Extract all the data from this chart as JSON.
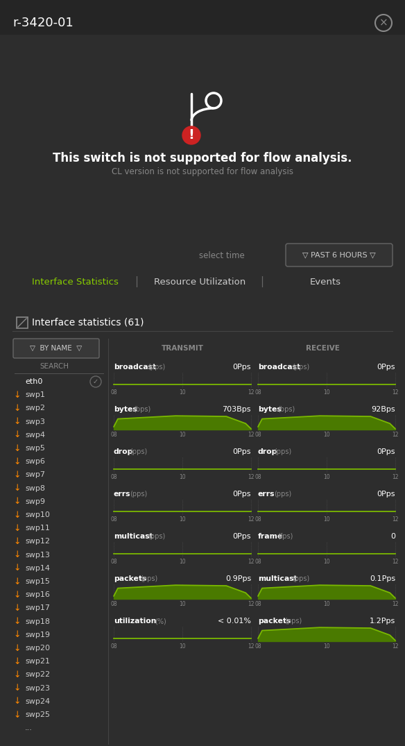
{
  "bg_color": "#2d2d2d",
  "title": "r-3420-01",
  "title_color": "#ffffff",
  "close_color": "#888888",
  "main_msg": "This switch is not supported for flow analysis.",
  "main_msg_color": "#ffffff",
  "sub_msg": "CL version is not supported for flow analysis",
  "sub_msg_color": "#888888",
  "select_time_label": "select time",
  "select_time_color": "#888888",
  "past_hours_btn": "▽ PAST 6 HOURS ▽",
  "past_hours_color": "#cccccc",
  "past_hours_border": "#666666",
  "tab_active": "Interface Statistics",
  "tab_active_color": "#88cc00",
  "tab_inactive": [
    "Resource Utilization",
    "Events"
  ],
  "tab_inactive_color": "#cccccc",
  "tab_sep_color": "#666666",
  "stats_icon_color": "#888888",
  "stats_title": "Interface statistics (61)",
  "stats_title_color": "#ffffff",
  "filter_btn": "▽  BY NAME  ▽",
  "filter_btn_color": "#cccccc",
  "filter_btn_border": "#666666",
  "search_label": "SEARCH",
  "search_color": "#888888",
  "search_line_color": "#555555",
  "iface_list": [
    "eth0",
    "swp1",
    "swp2",
    "swp3",
    "swp4",
    "swp5",
    "swp6",
    "swp7",
    "swp8",
    "swp9",
    "swp10",
    "swp11",
    "swp12",
    "swp13",
    "swp14",
    "swp15",
    "swp16",
    "swp17",
    "swp18",
    "swp19",
    "swp20",
    "swp21",
    "swp22",
    "swp23",
    "swp24",
    "swp25",
    "..."
  ],
  "iface_active": "eth0",
  "iface_active_color": "#ffffff",
  "iface_inactive_color": "#cccccc",
  "iface_down_color": "#ff8800",
  "iface_checkmark_color": "#888888",
  "divider_color": "#444444",
  "transmit_label": "TRANSMIT",
  "receive_label": "RECEIVE",
  "col_header_color": "#888888",
  "chart_line_color": "#7ab800",
  "chart_fill_color": "#4a7a00",
  "chart_tick_label_color": "#888888",
  "chart_ticks": [
    "08",
    "10",
    "12"
  ],
  "metrics_transmit": [
    {
      "label": "broadcast",
      "unit": "pps",
      "value": "0Pps",
      "fill": false
    },
    {
      "label": "bytes",
      "unit": "bps",
      "value": "703Bps",
      "fill": true
    },
    {
      "label": "drop",
      "unit": "pps",
      "value": "0Pps",
      "fill": false
    },
    {
      "label": "errs",
      "unit": "pps",
      "value": "0Pps",
      "fill": false
    },
    {
      "label": "multicast",
      "unit": "pps",
      "value": "0Pps",
      "fill": false
    },
    {
      "label": "packets",
      "unit": "pps",
      "value": "0.9Pps",
      "fill": true
    },
    {
      "label": "utilization",
      "unit": "%",
      "value": "< 0.01%",
      "fill": false
    }
  ],
  "metrics_receive": [
    {
      "label": "broadcast",
      "unit": "pps",
      "value": "0Pps",
      "fill": false
    },
    {
      "label": "bytes",
      "unit": "bps",
      "value": "92Bps",
      "fill": true
    },
    {
      "label": "drop",
      "unit": "pps",
      "value": "0Pps",
      "fill": false
    },
    {
      "label": "errs",
      "unit": "pps",
      "value": "0Pps",
      "fill": false
    },
    {
      "label": "frame",
      "unit": "fps",
      "value": "0",
      "fill": false
    },
    {
      "label": "multicast",
      "unit": "pps",
      "value": "0.1Pps",
      "fill": true
    },
    {
      "label": "packets",
      "unit": "pps",
      "value": "1.2Pps",
      "fill": true
    }
  ]
}
